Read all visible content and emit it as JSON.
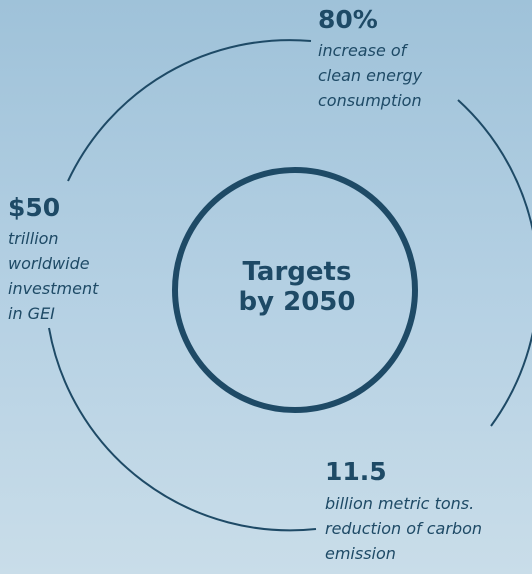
{
  "center": {
    "lines": [
      "Targets",
      "by 2050"
    ]
  },
  "items": [
    {
      "value": "80%",
      "description": [
        "increase of",
        "clean energy",
        "consumption"
      ]
    },
    {
      "value": "$50",
      "description": [
        "trillion",
        "worldwide",
        "investment",
        "in GEI"
      ]
    },
    {
      "value": "11.5",
      "description": [
        "billion metric tons.",
        "reduction of carbon",
        "emission"
      ]
    }
  ]
}
